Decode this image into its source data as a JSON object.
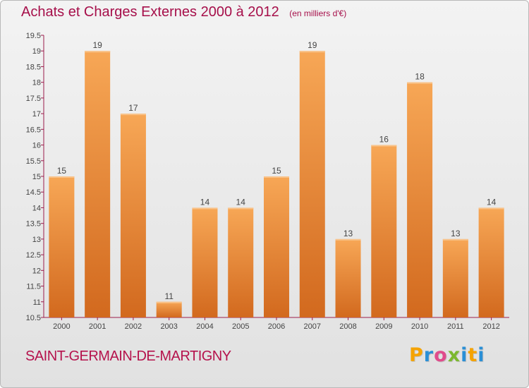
{
  "header": {
    "title": "Achats et Charges Externes 2000 à 2012",
    "subtitle": "(en milliers d'€)"
  },
  "footer": {
    "commune": "SAINT-GERMAIN-DE-MARTIGNY",
    "logo": {
      "letters": [
        "P",
        "r",
        "o",
        "x",
        "i",
        "t",
        "i"
      ],
      "colors": [
        "#f5a300",
        "#2a8fd6",
        "#e04b8c",
        "#7cb82f",
        "#2a8fd6",
        "#f5a300",
        "#2a8fd6"
      ]
    }
  },
  "colors": {
    "bar_light": "#f7a756",
    "bar_dark": "#d2691e",
    "title": "#a60f4a",
    "axis": "#9b1b4b"
  },
  "chart_data": {
    "type": "bar",
    "categories": [
      "2000",
      "2001",
      "2002",
      "2003",
      "2004",
      "2005",
      "2006",
      "2007",
      "2008",
      "2009",
      "2010",
      "2011",
      "2012"
    ],
    "values": [
      15,
      19,
      17,
      11,
      14,
      14,
      15,
      19,
      13,
      16,
      18,
      13,
      14
    ],
    "ylim": [
      10.5,
      19.5
    ],
    "yticks": [
      "10.5",
      "11",
      "11.5",
      "12",
      "12.5",
      "13",
      "13.5",
      "14",
      "14.5",
      "15",
      "15.5",
      "16",
      "16.5",
      "17",
      "17.5",
      "18",
      "18.5",
      "19",
      "19.5"
    ],
    "grid": false,
    "title": "Achats et Charges Externes 2000 à 2012",
    "xlabel": "",
    "ylabel": ""
  }
}
